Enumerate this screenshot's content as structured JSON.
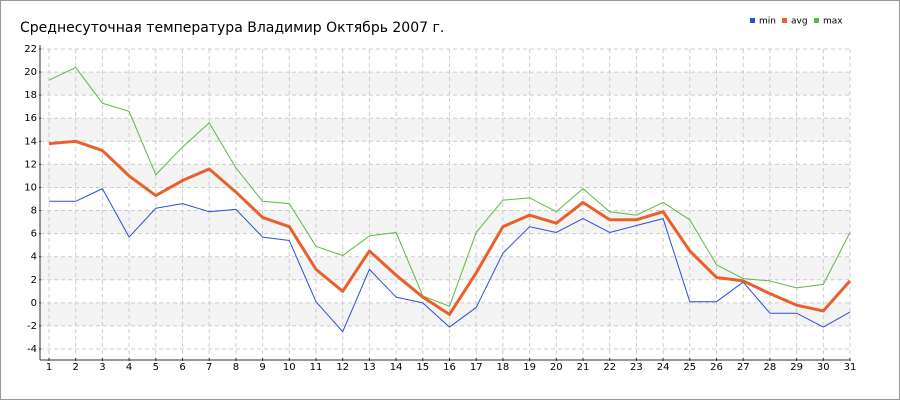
{
  "chart_data": {
    "type": "line",
    "title": "Среднесуточная температура Владимир  Октябрь 2007 г.",
    "x": [
      1,
      2,
      3,
      4,
      5,
      6,
      7,
      8,
      9,
      10,
      11,
      12,
      13,
      14,
      15,
      16,
      17,
      18,
      19,
      20,
      21,
      22,
      23,
      24,
      25,
      26,
      27,
      28,
      29,
      30,
      31
    ],
    "xlim": [
      1,
      31
    ],
    "xticks": [
      1,
      2,
      3,
      4,
      5,
      6,
      7,
      8,
      9,
      10,
      11,
      12,
      13,
      14,
      15,
      16,
      17,
      18,
      19,
      20,
      21,
      22,
      23,
      24,
      25,
      26,
      27,
      28,
      29,
      30,
      31
    ],
    "ylim": [
      -4,
      22
    ],
    "yticks": [
      -4,
      -2,
      0,
      2,
      4,
      6,
      8,
      10,
      12,
      14,
      16,
      18,
      20,
      22
    ],
    "grid": true,
    "legend": "top-right",
    "series": [
      {
        "name": "min",
        "color": "#2a4fd8",
        "values": [
          8.8,
          8.8,
          9.9,
          5.7,
          8.2,
          8.6,
          7.9,
          8.1,
          5.7,
          5.4,
          0.1,
          -2.5,
          2.9,
          0.5,
          0.0,
          -2.1,
          -0.4,
          4.3,
          6.6,
          6.1,
          7.3,
          6.1,
          6.7,
          7.3,
          0.1,
          0.1,
          1.8,
          -0.9,
          -0.9,
          -2.1,
          -0.8
        ]
      },
      {
        "name": "avg",
        "color": "#e8602c",
        "values": [
          13.8,
          14.0,
          13.2,
          11.0,
          9.3,
          10.6,
          11.6,
          9.6,
          7.4,
          6.6,
          2.9,
          1.0,
          4.5,
          2.4,
          0.5,
          -1.0,
          2.6,
          6.6,
          7.6,
          6.9,
          8.7,
          7.2,
          7.2,
          7.9,
          4.5,
          2.2,
          1.9,
          0.8,
          -0.2,
          -0.7,
          1.9
        ]
      },
      {
        "name": "max",
        "color": "#5cb845",
        "values": [
          19.3,
          20.4,
          17.3,
          16.6,
          11.1,
          13.5,
          15.6,
          11.7,
          8.8,
          8.6,
          4.9,
          4.1,
          5.8,
          6.1,
          0.6,
          -0.3,
          6.1,
          8.9,
          9.1,
          7.9,
          9.9,
          7.9,
          7.6,
          8.7,
          7.2,
          3.3,
          2.1,
          1.9,
          1.3,
          1.6,
          6.1
        ]
      }
    ]
  }
}
